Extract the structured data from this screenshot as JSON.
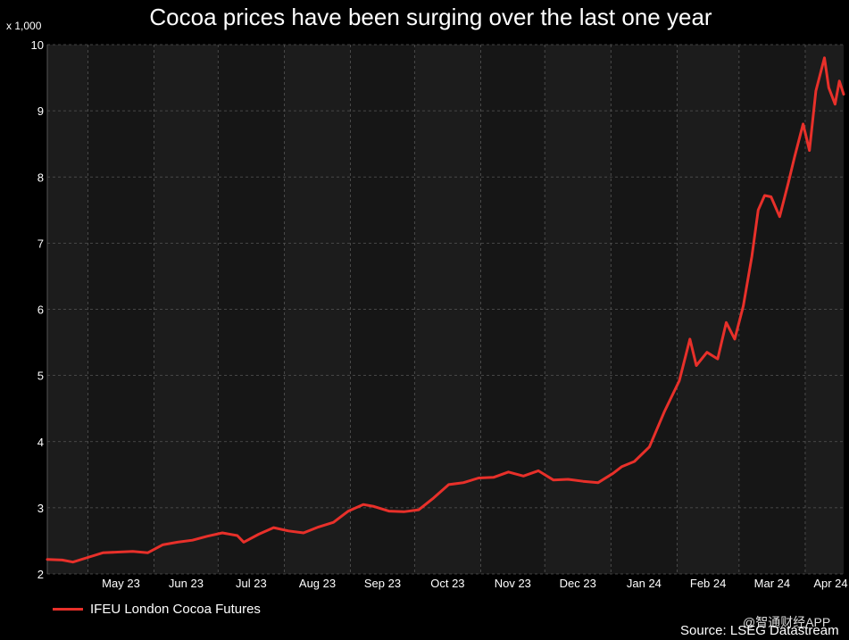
{
  "chart_data": {
    "type": "line",
    "title": "Cocoa prices have been surging over the last one year",
    "y_unit_label": "x 1,000",
    "ylim": [
      2,
      10
    ],
    "y_ticks": [
      2,
      3,
      4,
      5,
      6,
      7,
      8,
      9,
      10
    ],
    "x_ticks": [
      "May 23",
      "Jun 23",
      "Jul 23",
      "Aug 23",
      "Sep 23",
      "Oct 23",
      "Nov 23",
      "Dec 23",
      "Jan 24",
      "Feb 24",
      "Mar 24",
      "Apr 24"
    ],
    "x_range": [
      "2023-04-12",
      "2024-04-19"
    ],
    "grid": true,
    "legend_position": "bottom-left",
    "series": [
      {
        "name": "IFEU London Cocoa Futures",
        "color": "#e8302a",
        "x": [
          "2023-04-12",
          "2023-04-19",
          "2023-04-24",
          "2023-05-01",
          "2023-05-08",
          "2023-05-15",
          "2023-05-22",
          "2023-05-29",
          "2023-06-05",
          "2023-06-12",
          "2023-06-19",
          "2023-06-26",
          "2023-07-03",
          "2023-07-10",
          "2023-07-13",
          "2023-07-20",
          "2023-07-27",
          "2023-08-03",
          "2023-08-10",
          "2023-08-17",
          "2023-08-24",
          "2023-08-31",
          "2023-09-07",
          "2023-09-12",
          "2023-09-19",
          "2023-09-26",
          "2023-10-03",
          "2023-10-10",
          "2023-10-17",
          "2023-10-24",
          "2023-10-31",
          "2023-11-07",
          "2023-11-14",
          "2023-11-21",
          "2023-11-28",
          "2023-12-05",
          "2023-12-12",
          "2023-12-19",
          "2023-12-26",
          "2024-01-02",
          "2024-01-06",
          "2024-01-12",
          "2024-01-19",
          "2024-01-26",
          "2024-02-02",
          "2024-02-07",
          "2024-02-10",
          "2024-02-15",
          "2024-02-20",
          "2024-02-24",
          "2024-02-28",
          "2024-03-03",
          "2024-03-07",
          "2024-03-10",
          "2024-03-13",
          "2024-03-16",
          "2024-03-20",
          "2024-03-24",
          "2024-03-27",
          "2024-03-31",
          "2024-04-03",
          "2024-04-06",
          "2024-04-10",
          "2024-04-12",
          "2024-04-15",
          "2024-04-17",
          "2024-04-19"
        ],
        "values": [
          2.22,
          2.21,
          2.18,
          2.25,
          2.32,
          2.33,
          2.34,
          2.32,
          2.44,
          2.48,
          2.51,
          2.57,
          2.62,
          2.58,
          2.48,
          2.6,
          2.7,
          2.65,
          2.62,
          2.71,
          2.78,
          2.95,
          3.05,
          3.02,
          2.95,
          2.94,
          2.97,
          3.15,
          3.35,
          3.38,
          3.45,
          3.46,
          3.54,
          3.48,
          3.56,
          3.42,
          3.43,
          3.4,
          3.38,
          3.52,
          3.62,
          3.7,
          3.92,
          4.45,
          4.92,
          5.55,
          5.15,
          5.35,
          5.25,
          5.8,
          5.55,
          6.05,
          6.8,
          7.5,
          7.72,
          7.7,
          7.4,
          7.9,
          8.3,
          8.8,
          8.4,
          9.3,
          9.8,
          9.35,
          9.1,
          9.45,
          9.25
        ]
      }
    ]
  },
  "legend": {
    "label": "IFEU London Cocoa Futures"
  },
  "watermark": "@智通财经APP",
  "source": "Source: LSEG Datastream"
}
